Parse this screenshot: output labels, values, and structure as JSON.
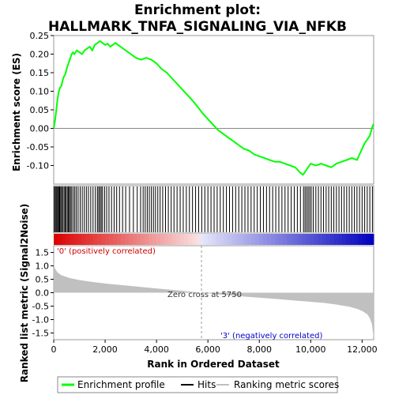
{
  "chart_data": {
    "type": "line",
    "title_line1": "Enrichment plot:",
    "title_line2": "HALLMARK_TNFA_SIGNALING_VIA_NFKB",
    "es_panel": {
      "ylabel": "Enrichment score (ES)",
      "ylim": [
        -0.15,
        0.25
      ],
      "yticks": [
        -0.1,
        -0.05,
        0.0,
        0.05,
        0.1,
        0.15,
        0.2,
        0.25
      ],
      "ytick_labels": [
        "-0.10",
        "-0.05",
        "0.00",
        "0.05",
        "0.10",
        "0.15",
        "0.20",
        "0.25"
      ],
      "series": [
        {
          "name": "Enrichment profile",
          "color": "#00ff00",
          "x": [
            0,
            50,
            100,
            150,
            200,
            250,
            300,
            350,
            400,
            450,
            500,
            550,
            600,
            650,
            700,
            750,
            800,
            900,
            1000,
            1100,
            1200,
            1300,
            1400,
            1500,
            1600,
            1700,
            1800,
            1900,
            2000,
            2100,
            2200,
            2300,
            2400,
            2500,
            2600,
            2700,
            2800,
            3000,
            3200,
            3400,
            3600,
            3800,
            4000,
            4200,
            4400,
            4600,
            4800,
            5000,
            5200,
            5400,
            5600,
            5800,
            6000,
            6200,
            6400,
            6600,
            6800,
            7000,
            7200,
            7400,
            7600,
            7800,
            8000,
            8200,
            8400,
            8600,
            8800,
            9000,
            9200,
            9400,
            9600,
            9700,
            9800,
            9900,
            10000,
            10200,
            10400,
            10600,
            10800,
            11000,
            11200,
            11400,
            11600,
            11800,
            11900,
            12000,
            12100,
            12200,
            12300,
            12400,
            12450
          ],
          "y": [
            0.0,
            0.02,
            0.05,
            0.08,
            0.1,
            0.11,
            0.115,
            0.13,
            0.14,
            0.145,
            0.16,
            0.17,
            0.18,
            0.19,
            0.2,
            0.205,
            0.2,
            0.21,
            0.205,
            0.2,
            0.21,
            0.215,
            0.22,
            0.21,
            0.225,
            0.23,
            0.235,
            0.23,
            0.225,
            0.228,
            0.22,
            0.225,
            0.23,
            0.225,
            0.22,
            0.215,
            0.21,
            0.2,
            0.19,
            0.185,
            0.19,
            0.185,
            0.175,
            0.16,
            0.15,
            0.135,
            0.12,
            0.105,
            0.09,
            0.075,
            0.058,
            0.04,
            0.025,
            0.01,
            -0.005,
            -0.015,
            -0.025,
            -0.035,
            -0.045,
            -0.055,
            -0.06,
            -0.07,
            -0.075,
            -0.08,
            -0.085,
            -0.09,
            -0.09,
            -0.095,
            -0.1,
            -0.105,
            -0.12,
            -0.125,
            -0.115,
            -0.105,
            -0.095,
            -0.1,
            -0.095,
            -0.1,
            -0.105,
            -0.095,
            -0.09,
            -0.085,
            -0.08,
            -0.085,
            -0.07,
            -0.055,
            -0.04,
            -0.03,
            -0.02,
            0.005,
            0.012
          ]
        }
      ]
    },
    "hits_panel": {
      "name": "Hits",
      "color": "#000000",
      "hit_positions": [
        20,
        60,
        95,
        130,
        160,
        200,
        230,
        270,
        310,
        345,
        400,
        440,
        480,
        530,
        570,
        610,
        650,
        700,
        760,
        820,
        880,
        950,
        1030,
        1110,
        1190,
        1270,
        1350,
        1440,
        1530,
        1620,
        1700,
        1750,
        1800,
        1850,
        1900,
        1980,
        2060,
        2150,
        2250,
        2350,
        2450,
        2560,
        2680,
        2800,
        2950,
        3100,
        3250,
        3380,
        3480,
        3560,
        3640,
        3720,
        3800,
        3880,
        3960,
        4050,
        4140,
        4240,
        4350,
        4460,
        4570,
        4680,
        4800,
        4920,
        5040,
        5160,
        5280,
        5400,
        5520,
        5640,
        5760,
        5880,
        6000,
        6120,
        6240,
        6360,
        6480,
        6600,
        6720,
        6840,
        6960,
        7080,
        7200,
        7320,
        7440,
        7560,
        7680,
        7800,
        7920,
        8040,
        8160,
        8280,
        8400,
        8520,
        8640,
        8760,
        8880,
        9000,
        9120,
        9240,
        9360,
        9480,
        9600,
        9720,
        9780,
        9840,
        9900,
        9960,
        10020,
        10100,
        10200,
        10300,
        10400,
        10500,
        10600,
        10700,
        10800,
        10900,
        11000,
        11100,
        11200,
        11300,
        11400,
        11500,
        11600,
        11700,
        11800,
        11900,
        12000,
        12100,
        12200,
        12300,
        12400
      ]
    },
    "rank_panel": {
      "ylabel": "Ranked list metric (Signal2Noise)",
      "ylim": [
        -1.75,
        1.75
      ],
      "yticks": [
        1.5,
        1.0,
        0.5,
        0.0,
        -0.5,
        -1.0,
        -1.5
      ],
      "ytick_labels": [
        "1.5",
        "1.0",
        "0.5",
        "0.0",
        "-0.5",
        "-1.0",
        "-1.5"
      ],
      "series": [
        {
          "name": "Ranking metric scores",
          "color": "#c0c0c0",
          "x": [
            0,
            50,
            150,
            300,
            600,
            1000,
            1500,
            2000,
            3000,
            4000,
            5000,
            5750,
            6500,
            7500,
            8500,
            9500,
            10500,
            11000,
            11500,
            11800,
            12000,
            12200,
            12300,
            12380,
            12420,
            12450
          ],
          "y": [
            1.1,
            0.9,
            0.75,
            0.65,
            0.55,
            0.47,
            0.4,
            0.34,
            0.25,
            0.16,
            0.07,
            0.0,
            -0.07,
            -0.15,
            -0.22,
            -0.3,
            -0.38,
            -0.44,
            -0.52,
            -0.6,
            -0.68,
            -0.8,
            -0.95,
            -1.15,
            -1.45,
            -1.7
          ]
        }
      ],
      "zero_cross_x": 5750,
      "annotations": {
        "positive": "'0' (positively correlated)",
        "negative": "'3' (negatively correlated)",
        "zero_cross": "Zero cross at 5750"
      },
      "positive_color": "#cc0000",
      "negative_color": "#0000cc"
    },
    "xlabel": "Rank in Ordered Dataset",
    "xlim": [
      0,
      12450
    ],
    "xticks": [
      0,
      2000,
      4000,
      6000,
      8000,
      10000,
      12000
    ],
    "xtick_labels": [
      "0",
      "2,000",
      "4,000",
      "6,000",
      "8,000",
      "10,000",
      "12,000"
    ],
    "legend": {
      "position": "bottom",
      "entries": [
        {
          "label": "Enrichment profile",
          "color": "#00ff00"
        },
        {
          "label": "Hits",
          "color": "#000000"
        },
        {
          "label": "Ranking metric scores",
          "color": "#c0c0c0"
        }
      ]
    }
  }
}
